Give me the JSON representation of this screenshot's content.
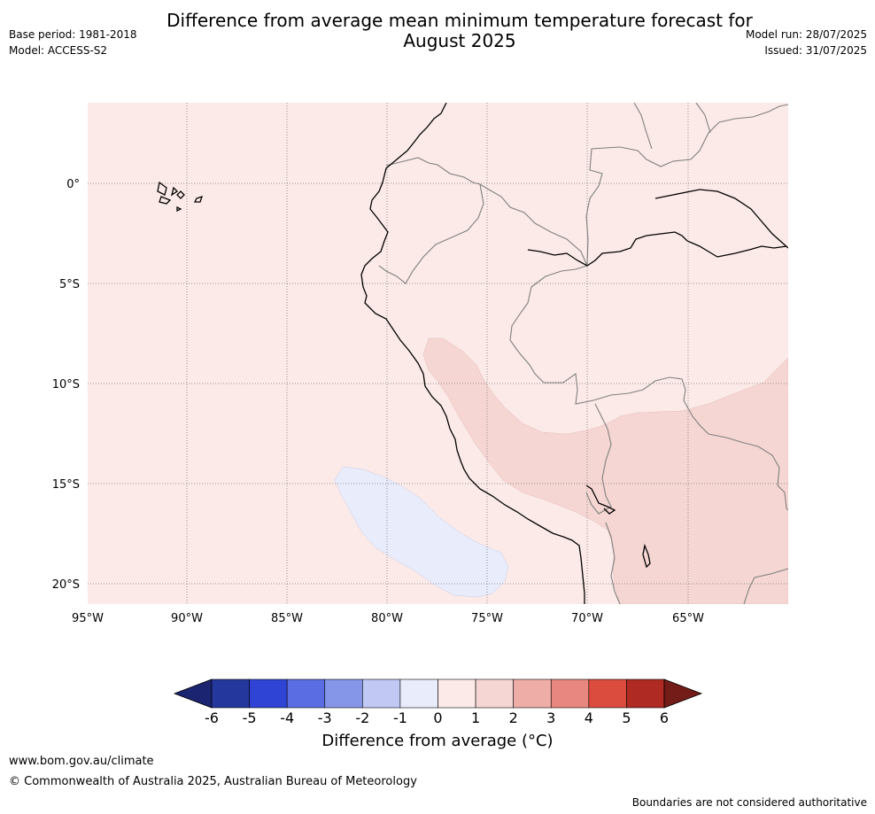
{
  "title": "Difference from average mean minimum temperature forecast for August 2025",
  "title_line1": "Difference from average mean minimum temperature forecast for",
  "title_line2": "August 2025",
  "meta_left": {
    "base_period": "Base period: 1981-2018",
    "model": "Model: ACCESS-S2"
  },
  "meta_right": {
    "model_run": "Model run: 28/07/2025",
    "issued": "Issued: 31/07/2025"
  },
  "map": {
    "lon_ticks": [
      "95°W",
      "90°W",
      "85°W",
      "80°W",
      "75°W",
      "70°W",
      "65°W"
    ],
    "lat_ticks": [
      "0°",
      "5°S",
      "10°S",
      "15°S",
      "20°S"
    ],
    "lon_range": [
      -95,
      -60
    ],
    "lat_range": [
      -21,
      4
    ],
    "gridlines": true,
    "background_category": "0 to 1",
    "regions": [
      {
        "name": "coastal-warm-band",
        "category": "1 to 2",
        "color": "#f5d6d3"
      },
      {
        "name": "altiplano-warm-area",
        "category": "1 to 2",
        "color": "#f5d6d3"
      },
      {
        "name": "offshore-cool-patch",
        "category": "-1 to 0",
        "color": "#e9ecfb"
      }
    ]
  },
  "colorbar": {
    "ticks": [
      "-6",
      "-5",
      "-4",
      "-3",
      "-2",
      "-1",
      "0",
      "1",
      "2",
      "3",
      "4",
      "5",
      "6"
    ],
    "colors": [
      "#24379c",
      "#2f44d4",
      "#5b6de3",
      "#8595e8",
      "#c1c8f4",
      "#e9ecfb",
      "#fbeae8",
      "#f5d6d3",
      "#eeaea7",
      "#e8877f",
      "#db4b3e",
      "#ae2a22"
    ],
    "under_color": "#1a2470",
    "over_color": "#731c18",
    "label": "Difference from average (°C)"
  },
  "footer": {
    "url": "www.bom.gov.au/climate",
    "copyright": "© Commonwealth of Australia 2025, Australian Bureau of Meteorology",
    "note": "Boundaries are not considered authoritative"
  }
}
